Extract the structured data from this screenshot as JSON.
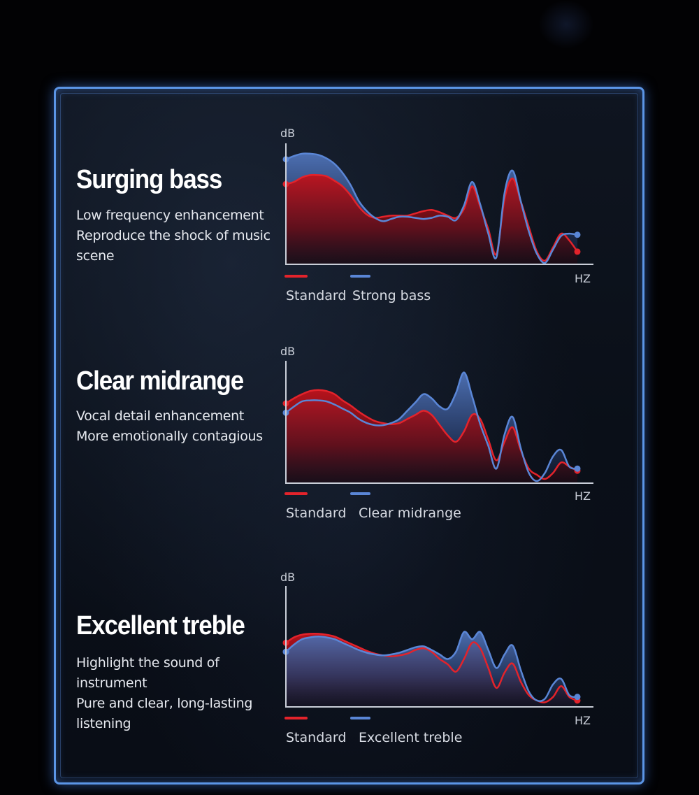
{
  "colors": {
    "frame": "#5b95e6",
    "standard": "#e3232b",
    "enhanced": "#5a86d6",
    "background": "#020204"
  },
  "sections": [
    {
      "title": "Surging bass",
      "description": [
        "Low frequency enhancement",
        "Reproduce the shock of music",
        "scene"
      ]
    },
    {
      "title": "Clear midrange",
      "description": [
        "Vocal detail enhancement",
        "More emotionally contagious"
      ]
    },
    {
      "title": "Excellent treble",
      "description": [
        "Highlight the sound of",
        "instrument",
        "Pure and clear, long-lasting",
        "listening"
      ]
    }
  ],
  "chart_data": [
    {
      "type": "area",
      "ylabel": "dB",
      "xlabel": "HZ",
      "series": [
        {
          "name": "Standard",
          "color": "#e3232b",
          "values": [
            70,
            72,
            76,
            78,
            78,
            77,
            73,
            68,
            60,
            50,
            43,
            40,
            41,
            42,
            42,
            42,
            44,
            46,
            47,
            45,
            42,
            40,
            48,
            68,
            50,
            30,
            8,
            57,
            75,
            55,
            32,
            10,
            2,
            14,
            26,
            20,
            10
          ]
        },
        {
          "name": "Strong bass",
          "color": "#5a86d6",
          "values": [
            92,
            95,
            97,
            97,
            96,
            93,
            88,
            80,
            69,
            55,
            46,
            40,
            37,
            39,
            41,
            41,
            40,
            39,
            40,
            42,
            41,
            38,
            51,
            72,
            52,
            26,
            5,
            62,
            82,
            55,
            28,
            8,
            0,
            12,
            24,
            26,
            25
          ]
        }
      ]
    },
    {
      "type": "area",
      "ylabel": "dB",
      "xlabel": "HZ",
      "series": [
        {
          "name": "Standard",
          "color": "#e3232b",
          "values": [
            75,
            80,
            84,
            87,
            88,
            87,
            84,
            78,
            73,
            67,
            62,
            58,
            56,
            55,
            56,
            60,
            64,
            68,
            64,
            54,
            44,
            38,
            48,
            64,
            60,
            40,
            20,
            38,
            52,
            30,
            12,
            6,
            2,
            8,
            18,
            14,
            10
          ]
        },
        {
          "name": "Clear midrange",
          "color": "#5a86d6",
          "values": [
            66,
            72,
            77,
            78,
            78,
            77,
            74,
            70,
            66,
            60,
            56,
            54,
            54,
            56,
            60,
            68,
            76,
            84,
            80,
            72,
            70,
            85,
            105,
            82,
            55,
            34,
            12,
            45,
            62,
            32,
            8,
            0,
            8,
            24,
            30,
            14,
            12
          ]
        }
      ]
    },
    {
      "type": "area",
      "ylabel": "dB",
      "xlabel": "HZ",
      "series": [
        {
          "name": "Standard",
          "color": "#e3232b",
          "values": [
            68,
            74,
            77,
            78,
            78,
            77,
            75,
            71,
            67,
            63,
            59,
            56,
            54,
            53,
            54,
            56,
            60,
            62,
            58,
            50,
            44,
            36,
            50,
            68,
            62,
            40,
            18,
            35,
            45,
            25,
            10,
            4,
            2,
            8,
            20,
            8,
            4
          ]
        },
        {
          "name": "Excellent treble",
          "color": "#5a86d6",
          "values": [
            58,
            66,
            72,
            74,
            75,
            74,
            72,
            68,
            64,
            60,
            57,
            55,
            54,
            55,
            57,
            60,
            63,
            64,
            60,
            55,
            50,
            58,
            80,
            72,
            80,
            60,
            40,
            55,
            65,
            38,
            14,
            4,
            6,
            22,
            28,
            10,
            8
          ]
        }
      ]
    }
  ]
}
